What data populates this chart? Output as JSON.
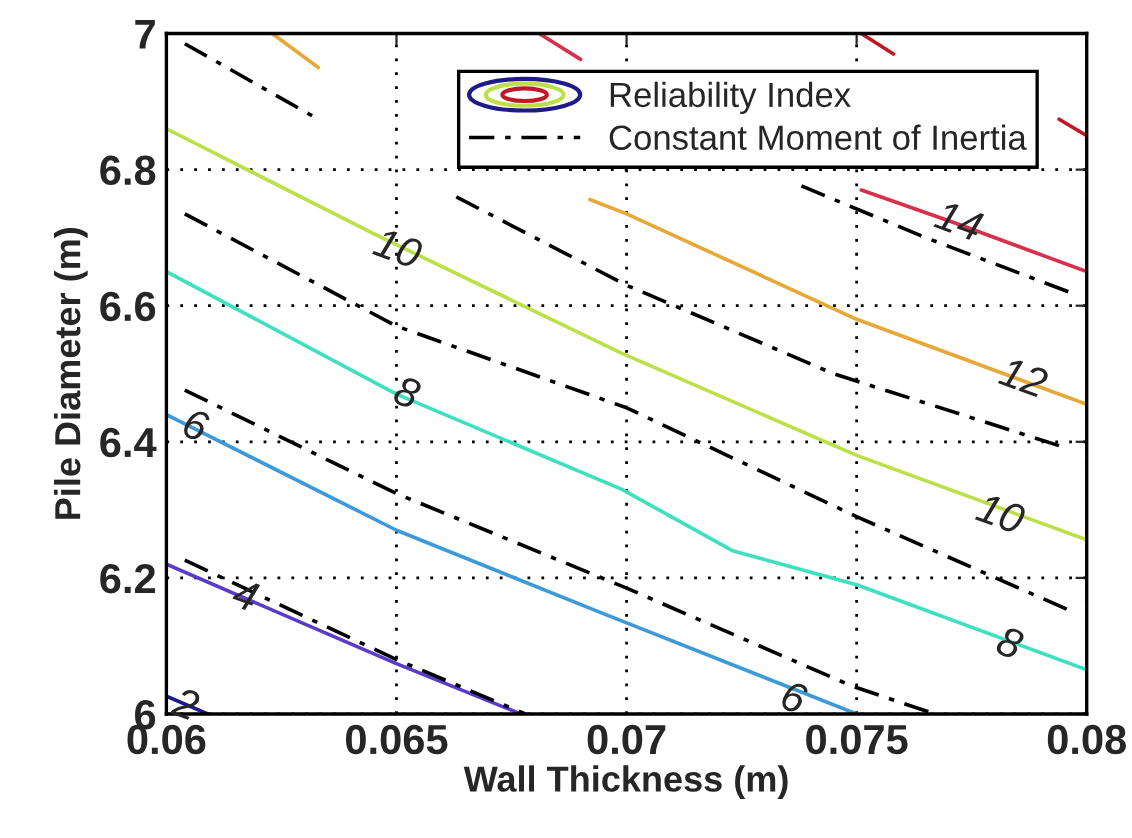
{
  "chart_data": {
    "type": "line",
    "xlabel": "Wall Thickness (m)",
    "ylabel": "Pile Diameter (m)",
    "xlim": [
      0.06,
      0.08
    ],
    "xticks": [
      0.06,
      0.065,
      0.07,
      0.075,
      0.08
    ],
    "ylim": [
      6,
      7
    ],
    "yticks": [
      6,
      6.2,
      6.4,
      6.6,
      6.8,
      7
    ],
    "grid": true,
    "legend": "top right",
    "series": [
      {
        "name": "Reliability Index",
        "color": "#1f1a8a",
        "line_style": "solid",
        "x": [
          0.06,
          0.0609
        ],
        "values": [
          6.026,
          6.0
        ]
      },
      {
        "color": "#5a3cc8",
        "line_style": "solid",
        "x": [
          0.06,
          0.065,
          0.0677
        ],
        "values": [
          6.22,
          6.074,
          6.0
        ]
      },
      {
        "color": "#3d9ad8",
        "line_style": "solid",
        "x": [
          0.06,
          0.065,
          0.0694,
          0.075
        ],
        "values": [
          6.44,
          6.27,
          6.15,
          6.0
        ]
      },
      {
        "color": "#3fe0c0",
        "line_style": "solid",
        "x": [
          0.06,
          0.065,
          0.0699,
          0.0723,
          0.075,
          0.08
        ],
        "values": [
          6.65,
          6.47,
          6.33,
          6.24,
          6.19,
          6.065
        ]
      },
      {
        "color": "#bde048",
        "line_style": "solid",
        "x": [
          0.06,
          0.0645,
          0.0699,
          0.075,
          0.08
        ],
        "values": [
          6.86,
          6.706,
          6.53,
          6.38,
          6.256
        ]
      },
      {
        "color": "#e8a838",
        "line_style": "solid",
        "x": [
          0.0623,
          0.0633,
          0.066,
          0.0692,
          0.07,
          0.075,
          0.08
        ],
        "values": [
          7.0,
          6.95,
          null,
          6.756,
          6.735,
          6.58,
          6.455
        ]
      },
      {
        "color": "#d8304a",
        "line_style": "solid",
        "x": [
          0.0681,
          0.069,
          0.072,
          0.0751,
          0.0772,
          0.08
        ],
        "values": [
          7.0,
          6.962,
          null,
          6.77,
          6.72,
          6.65
        ]
      },
      {
        "color": "#c01828",
        "line_style": "solid",
        "x": [
          0.0751,
          0.0758,
          0.077,
          0.0794,
          0.08
        ],
        "values": [
          7.0,
          6.97,
          null,
          6.874,
          6.85
        ]
      },
      {
        "name": "Constant Moment of Inertia",
        "color": "#000000",
        "line_style": "dashdot",
        "x": [
          0.0604,
          0.0633,
          0.065,
          0.0663,
          0.07,
          0.0745,
          0.0796
        ],
        "values": [
          6.985,
          6.874,
          null,
          6.76,
          6.63,
          6.5,
          6.39
        ]
      },
      {
        "color": "#000000",
        "line_style": "dashdot",
        "x": [
          0.0738,
          0.0765,
          0.0797
        ],
        "values": [
          6.776,
          6.7,
          6.618
        ]
      },
      {
        "color": "#000000",
        "line_style": "dashdot",
        "x": [
          0.0604,
          0.065,
          0.07,
          0.075,
          0.0797
        ],
        "values": [
          6.735,
          6.57,
          6.45,
          6.29,
          6.15
        ]
      },
      {
        "color": "#000000",
        "line_style": "dashdot",
        "x": [
          0.0604,
          0.065,
          0.07,
          0.0749,
          0.0767
        ],
        "values": [
          6.476,
          6.324,
          6.185,
          6.041,
          6.0
        ]
      },
      {
        "color": "#000000",
        "line_style": "dashdot",
        "x": [
          0.0604,
          0.065,
          0.0678
        ],
        "values": [
          6.226,
          6.08,
          6.0
        ]
      }
    ],
    "annotations": [
      {
        "text": "2",
        "x": 0.0604,
        "y": 6.01
      },
      {
        "text": "4",
        "x": 0.0617,
        "y": 6.17
      },
      {
        "text": "6",
        "x": 0.0606,
        "y": 6.42
      },
      {
        "text": "6",
        "x": 0.0736,
        "y": 6.02
      },
      {
        "text": "8",
        "x": 0.0652,
        "y": 6.468
      },
      {
        "text": "8",
        "x": 0.0783,
        "y": 6.1
      },
      {
        "text": "10",
        "x": 0.065,
        "y": 6.68
      },
      {
        "text": "10",
        "x": 0.0781,
        "y": 6.29
      },
      {
        "text": "12",
        "x": 0.0786,
        "y": 6.49
      },
      {
        "text": "14",
        "x": 0.0772,
        "y": 6.72
      }
    ]
  }
}
